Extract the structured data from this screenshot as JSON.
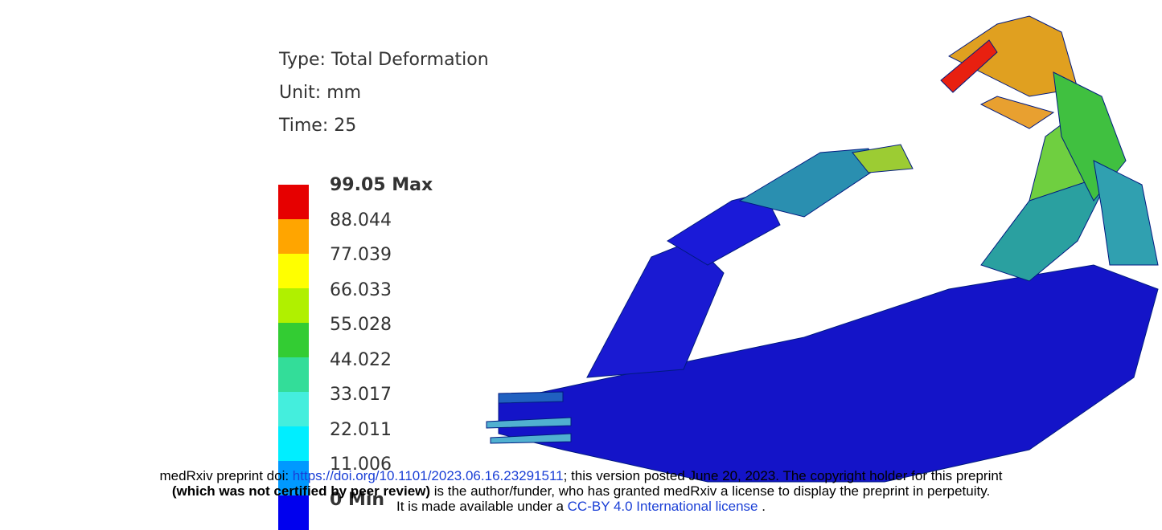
{
  "figure": {
    "result_type": "Type: Total Deformation",
    "unit": "Unit: mm",
    "time": "Time: 25",
    "legend_labels": [
      "99.05 Max",
      "88.044",
      "77.039",
      "66.033",
      "55.028",
      "44.022",
      "33.017",
      "22.011",
      "11.006",
      "0 Min"
    ]
  },
  "footer": {
    "line1_prefix": "medRxiv preprint doi: ",
    "doi_link": "https://doi.org/10.1101/2023.06.16.23291511",
    "line1_suffix": "; this version posted June 20, 2023. The copyright holder for this preprint",
    "line2_bold": "(which was not certified by peer review)",
    "line2_rest": " is the author/funder, who has granted medRxiv a license to display the preprint in perpetuity.",
    "line3_prefix": "It is made available under a ",
    "license_link": "CC-BY 4.0 International license",
    "line3_suffix": " ."
  }
}
